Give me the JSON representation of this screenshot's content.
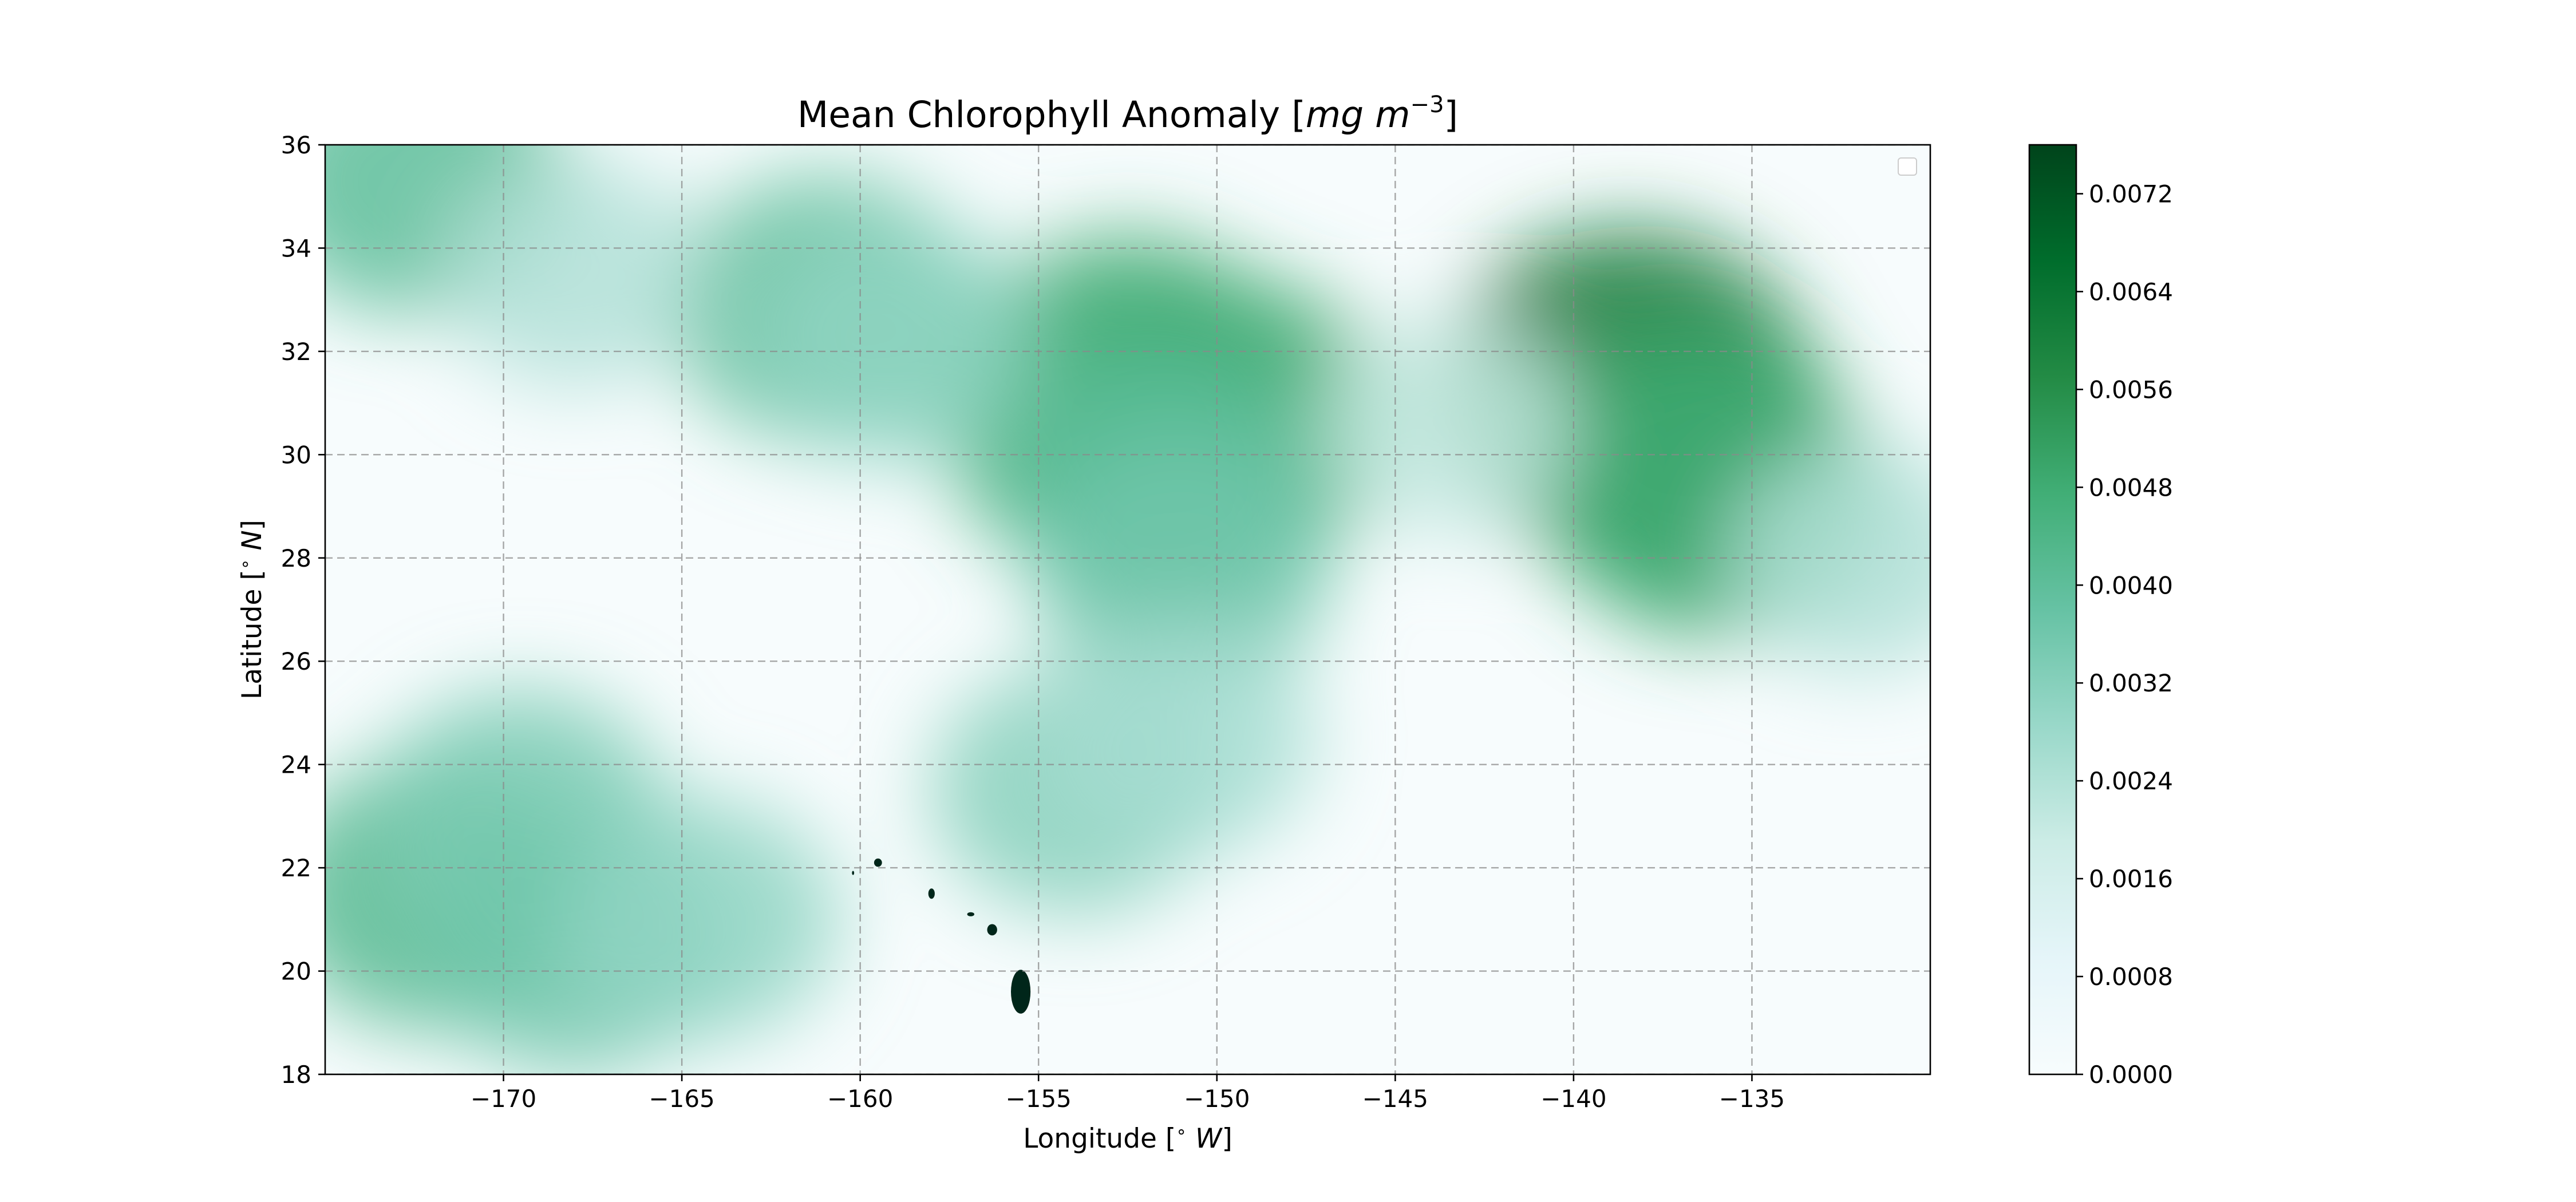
{
  "chart_data": {
    "type": "heatmap",
    "title_text": "Mean Chlorophyll Anomaly [",
    "title_math": "mg m",
    "title_exponent": "−3",
    "title_close": "]",
    "xlabel_text": "Longitude [",
    "xlabel_math": "∘",
    "xlabel_unit": "W",
    "xlabel_close": "]",
    "ylabel_text": "Latitude [",
    "ylabel_math": "∘",
    "ylabel_unit": "N",
    "ylabel_close": "]",
    "xlim": [
      -175,
      -130
    ],
    "ylim": [
      18,
      36
    ],
    "x_ticks": [
      -170,
      -165,
      -160,
      -155,
      -150,
      -145,
      -140,
      -135
    ],
    "x_tick_labels": [
      "−170",
      "−165",
      "−160",
      "−155",
      "−150",
      "−145",
      "−140",
      "−135"
    ],
    "y_ticks": [
      18,
      20,
      22,
      24,
      26,
      28,
      30,
      32,
      34,
      36
    ],
    "y_tick_labels": [
      "18",
      "20",
      "22",
      "24",
      "26",
      "28",
      "30",
      "32",
      "34",
      "36"
    ],
    "grid": true,
    "legend": "top-right (empty)",
    "colormap": "BuGn",
    "colorbar": {
      "range": [
        0.0,
        0.0076
      ],
      "ticks": [
        0.0,
        0.0008,
        0.0016,
        0.0024,
        0.0032,
        0.004,
        0.0048,
        0.0056,
        0.0064,
        0.0072
      ],
      "tick_labels": [
        "0.0000",
        "0.0008",
        "0.0016",
        "0.0024",
        "0.0032",
        "0.0040",
        "0.0048",
        "0.0056",
        "0.0064",
        "0.0072"
      ]
    },
    "anomaly_regions": [
      {
        "lon": -138.5,
        "lat": 31.2,
        "value": 0.0064
      },
      {
        "lon": -137.0,
        "lat": 30.0,
        "value": 0.0052
      },
      {
        "lon": -136.0,
        "lat": 29.2,
        "value": 0.0048
      },
      {
        "lon": -152.5,
        "lat": 31.5,
        "value": 0.0048
      },
      {
        "lon": -153.0,
        "lat": 30.4,
        "value": 0.0046
      },
      {
        "lon": -149.5,
        "lat": 30.6,
        "value": 0.0048
      },
      {
        "lon": -151.5,
        "lat": 29.4,
        "value": 0.004
      },
      {
        "lon": -151.0,
        "lat": 27.8,
        "value": 0.0036
      },
      {
        "lon": -161.0,
        "lat": 32.8,
        "value": 0.004
      },
      {
        "lon": -159.0,
        "lat": 32.2,
        "value": 0.003
      },
      {
        "lon": -172.5,
        "lat": 35.3,
        "value": 0.004
      },
      {
        "lon": -168.0,
        "lat": 33.5,
        "value": 0.0024
      },
      {
        "lon": -172.0,
        "lat": 21.5,
        "value": 0.0042
      },
      {
        "lon": -169.5,
        "lat": 23.0,
        "value": 0.0034
      },
      {
        "lon": -168.0,
        "lat": 20.5,
        "value": 0.0036
      },
      {
        "lon": -164.5,
        "lat": 21.0,
        "value": 0.003
      },
      {
        "lon": -154.0,
        "lat": 23.5,
        "value": 0.0032
      },
      {
        "lon": -151.0,
        "lat": 24.5,
        "value": 0.0026
      },
      {
        "lon": -132.0,
        "lat": 28.0,
        "value": 0.0024
      },
      {
        "lon": -143.5,
        "lat": 30.5,
        "value": 0.002
      }
    ],
    "land_mask_color": "#00261a"
  }
}
